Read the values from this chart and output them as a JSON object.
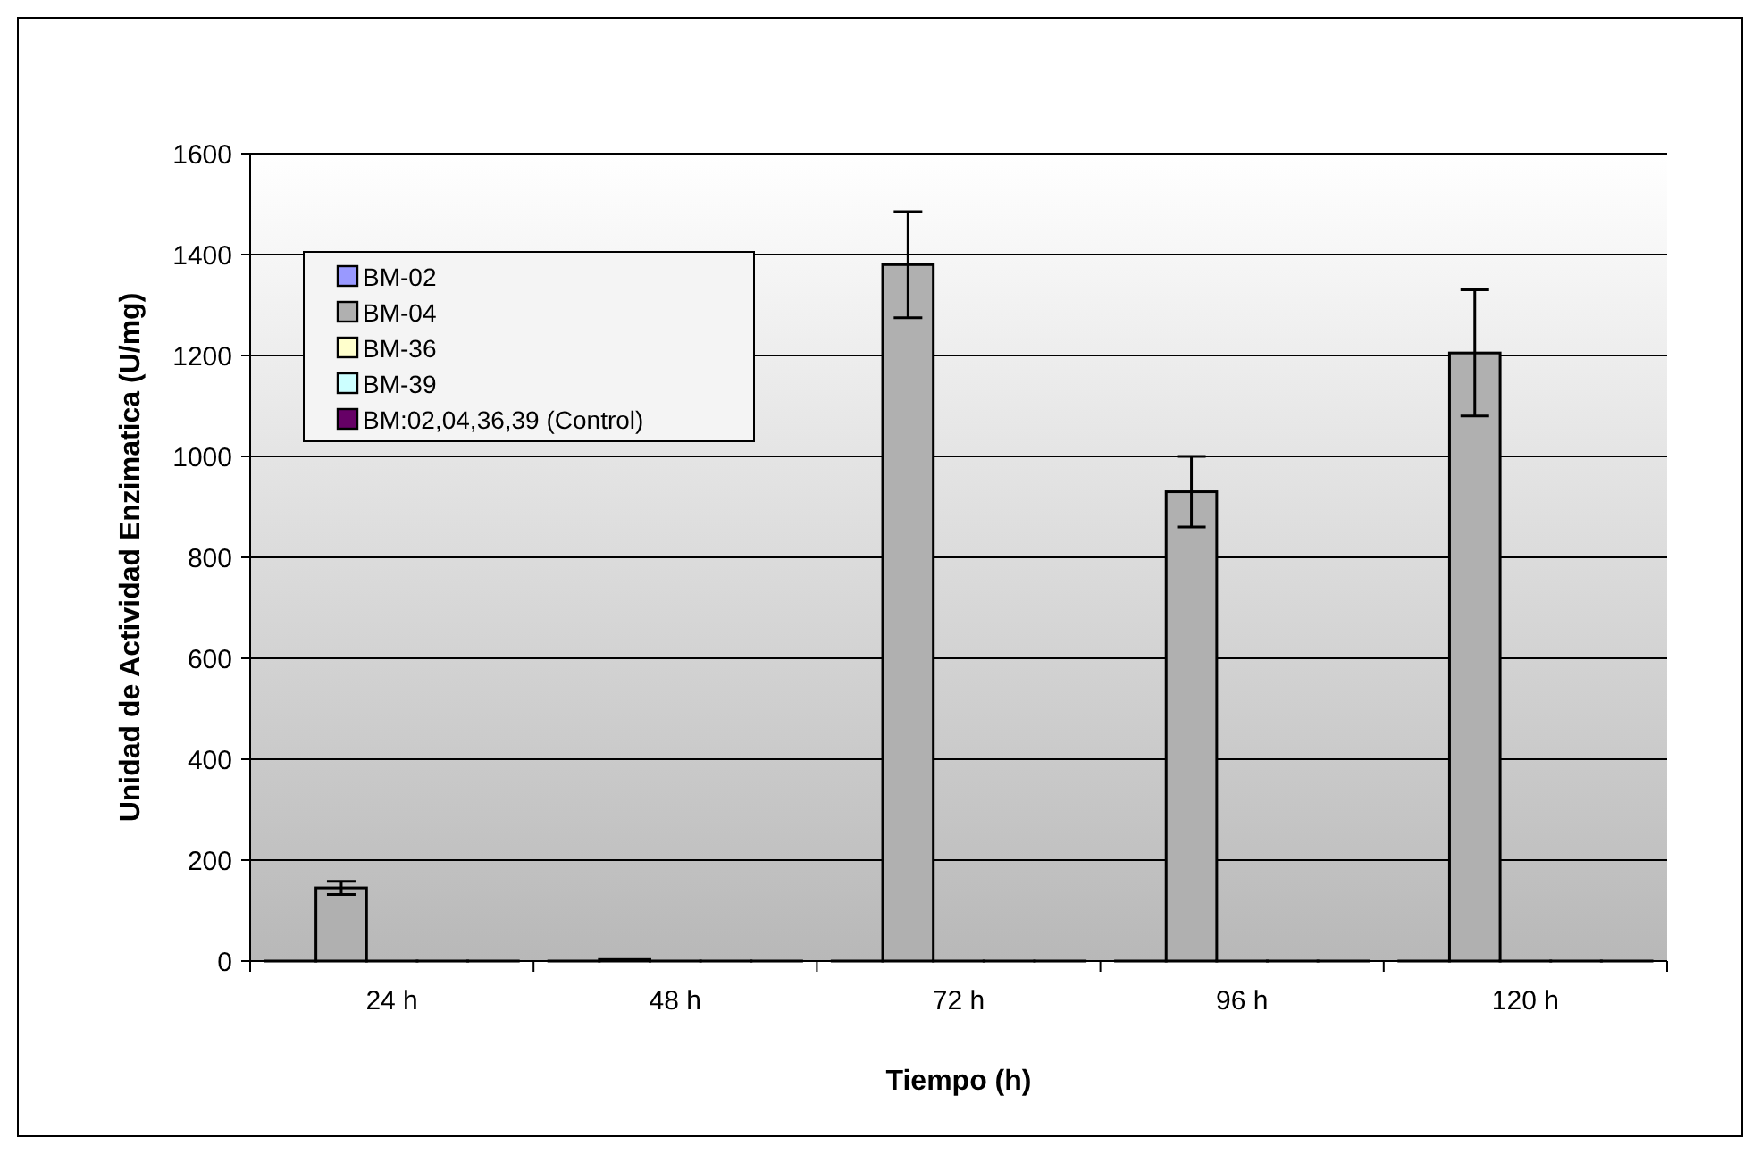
{
  "chart_data": {
    "type": "bar",
    "xlabel": "Tiempo (h)",
    "ylabel": "Unidad de Actividad Enzimatica (U/mg)",
    "categories": [
      "24 h",
      "48 h",
      "72 h",
      "96 h",
      "120 h"
    ],
    "ylim": [
      0,
      1600
    ],
    "yticks": [
      0,
      200,
      400,
      600,
      800,
      1000,
      1200,
      1400,
      1600
    ],
    "grid": "y",
    "legend": "top left",
    "series": [
      {
        "name": "BM-02",
        "color": "#9999ff",
        "values": [
          0,
          0,
          0,
          0,
          0
        ]
      },
      {
        "name": "BM-04",
        "color": "#b0b0b0",
        "values": [
          145,
          3,
          1380,
          930,
          1205
        ],
        "errors": [
          13,
          null,
          105,
          70,
          125
        ]
      },
      {
        "name": "BM-36",
        "color": "#ffffcc",
        "values": [
          0,
          0,
          0,
          0,
          0
        ]
      },
      {
        "name": "BM-39",
        "color": "#ccffff",
        "values": [
          0,
          0,
          0,
          0,
          0
        ]
      },
      {
        "name": "BM:02,04,36,39 (Control)",
        "color": "#660066",
        "values": [
          0,
          0,
          0,
          0,
          0
        ]
      }
    ]
  }
}
